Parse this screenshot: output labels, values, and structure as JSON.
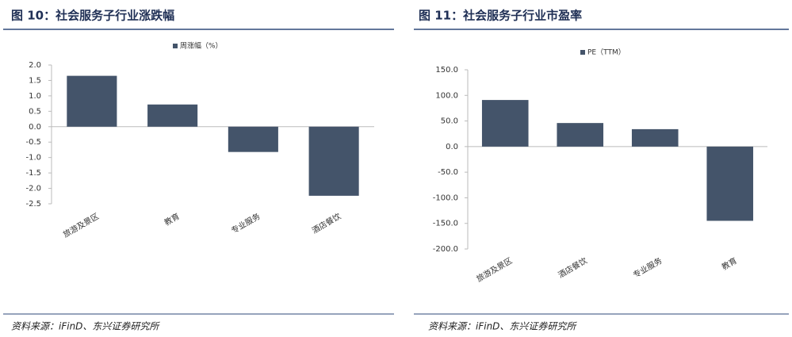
{
  "chart_data": [
    {
      "type": "bar",
      "title": "图 10：社会服务子行业涨跌幅",
      "categories": [
        "旅游及景区",
        "教育",
        "专业服务",
        "酒店餐饮"
      ],
      "series": [
        {
          "name": "周涨幅（%）",
          "color": "#44546a",
          "values": [
            1.65,
            0.72,
            -0.82,
            -2.24
          ]
        }
      ],
      "ylim": [
        -2.5,
        2.0
      ],
      "yticks": [
        {
          "value": 2.0,
          "label": "2.0"
        },
        1.5,
        {
          "value": 1.0,
          "label": "1.0"
        },
        0.5,
        {
          "value": 0.0,
          "label": "0.0"
        },
        -0.5,
        {
          "value": -1.0,
          "label": "-1.0"
        },
        -1.5,
        {
          "value": -2.0,
          "label": "-2.0"
        },
        -2.5
      ],
      "source": "资料来源：iFinD、东兴证券研究所"
    },
    {
      "type": "bar",
      "title": "图 11：社会服务子行业市盈率",
      "categories": [
        "旅游及景区",
        "酒店餐饮",
        "专业服务",
        "教育"
      ],
      "series": [
        {
          "name": "PE（TTM）",
          "color": "#44546a",
          "values": [
            91,
            46,
            34,
            -145
          ]
        }
      ],
      "ylim": [
        -200,
        150
      ],
      "yticks": [
        {
          "value": 150,
          "label": "150.0"
        },
        {
          "value": 100,
          "label": "100.0"
        },
        {
          "value": 50,
          "label": "50.0"
        },
        {
          "value": 0,
          "label": "0.0"
        },
        {
          "value": -50,
          "label": "-50.0"
        },
        {
          "value": -100,
          "label": "-100.0"
        },
        {
          "value": -150,
          "label": "-150.0"
        },
        {
          "value": -200,
          "label": "-200.0"
        }
      ],
      "source": "资料来源：iFinD、东兴证券研究所"
    }
  ]
}
